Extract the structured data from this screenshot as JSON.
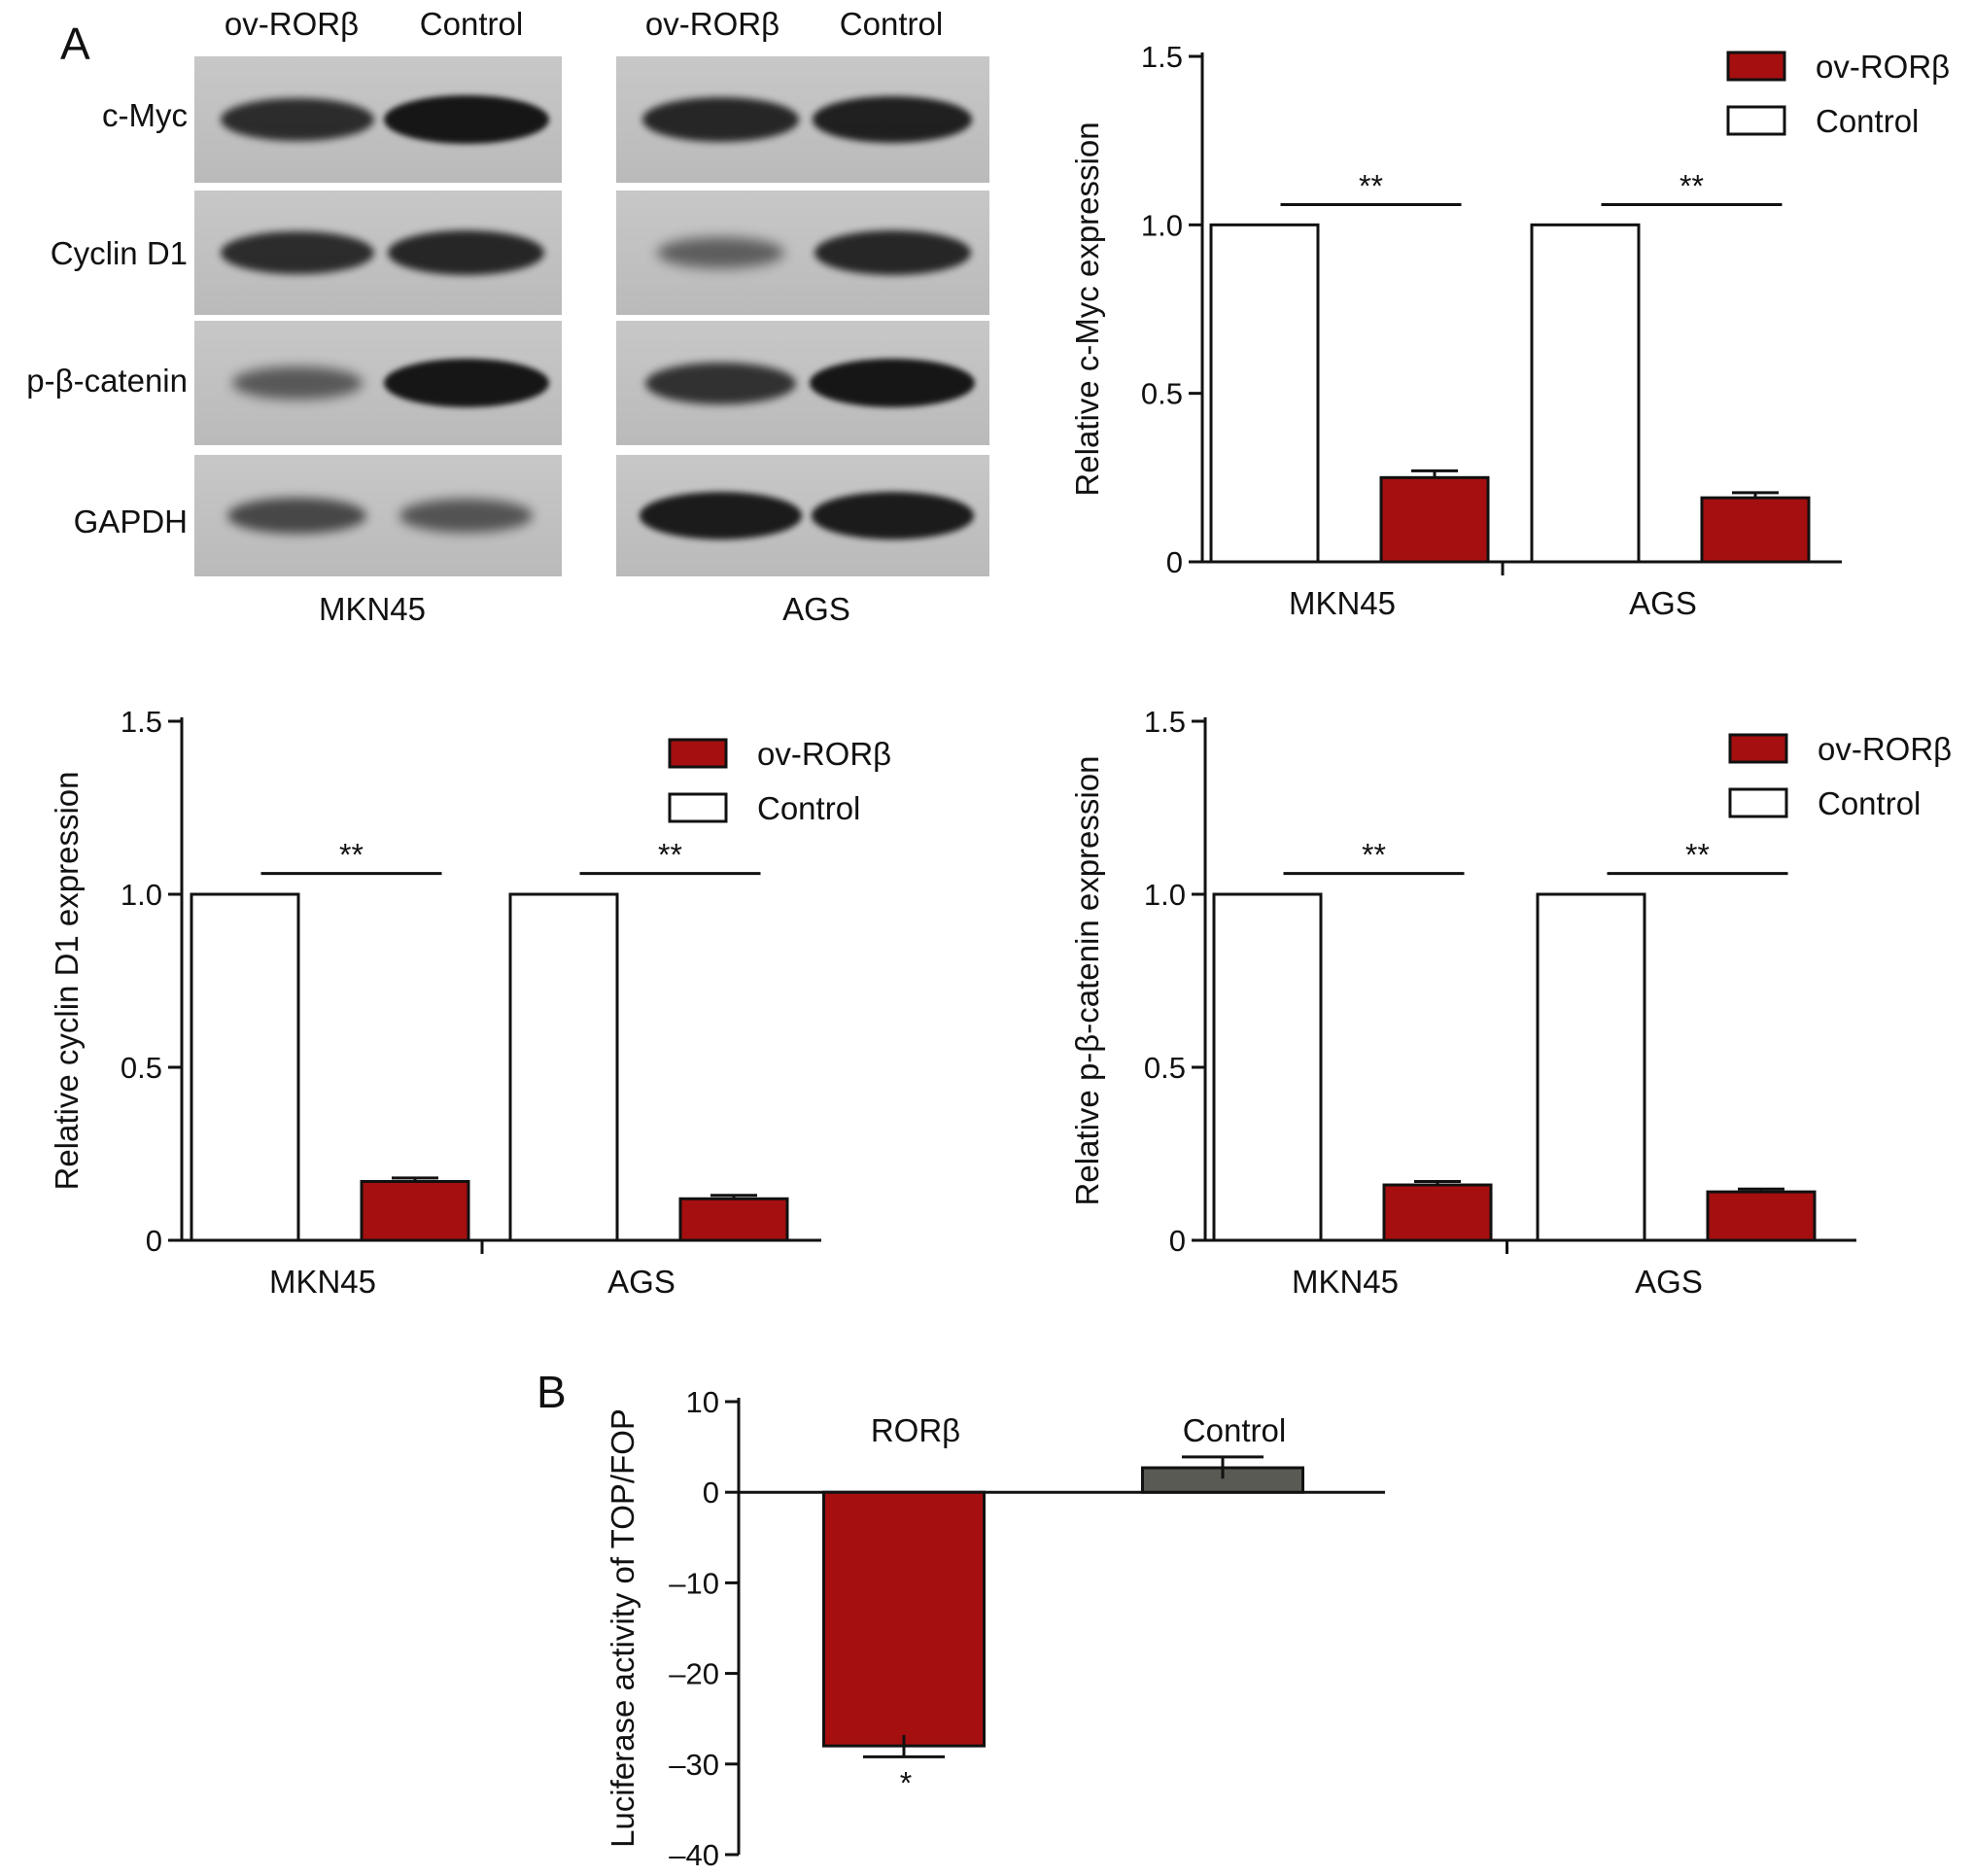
{
  "panel_labels": [
    "A",
    "B"
  ],
  "blot": {
    "lane_labels": [
      "ov-RORβ",
      "Control"
    ],
    "proteins": [
      "c-Myc",
      "Cyclin D1",
      "p-β-catenin",
      "GAPDH"
    ],
    "cell_lines": [
      "MKN45",
      "AGS"
    ],
    "band_intensity": [
      [
        [
          0.8,
          1.0
        ],
        [
          0.85,
          0.9
        ]
      ],
      [
        [
          0.8,
          0.85
        ],
        [
          0.35,
          0.85
        ]
      ],
      [
        [
          0.4,
          1.0
        ],
        [
          0.75,
          1.0
        ]
      ],
      [
        [
          0.55,
          0.45
        ],
        [
          0.95,
          0.95
        ]
      ]
    ]
  },
  "chart_data": [
    {
      "type": "bar",
      "categories": [
        "MKN45",
        "AGS"
      ],
      "series": [
        {
          "name": "ov-RORβ",
          "values": [
            0.25,
            0.19
          ],
          "errors": [
            0.02,
            0.015
          ]
        },
        {
          "name": "Control",
          "values": [
            1.0,
            1.0
          ]
        }
      ],
      "ylabel": "Relative c-Myc expression",
      "ylim": [
        0,
        1.5
      ],
      "yticks": [
        "0",
        "0.5",
        "1.0",
        "1.5"
      ],
      "significance": [
        "**",
        "**"
      ],
      "legend": "top-right",
      "colors": {
        "ov-RORβ": "#a50f0f",
        "Control": "#ffffff"
      }
    },
    {
      "type": "bar",
      "categories": [
        "MKN45",
        "AGS"
      ],
      "series": [
        {
          "name": "ov-RORβ",
          "values": [
            0.17,
            0.12
          ],
          "errors": [
            0.01,
            0.01
          ]
        },
        {
          "name": "Control",
          "values": [
            1.0,
            1.0
          ]
        }
      ],
      "ylabel": "Relative cyclin D1 expression",
      "ylim": [
        0,
        1.5
      ],
      "yticks": [
        "0",
        "0.5",
        "1.0",
        "1.5"
      ],
      "significance": [
        "**",
        "**"
      ],
      "legend": "top-right",
      "colors": {
        "ov-RORβ": "#a50f0f",
        "Control": "#ffffff"
      }
    },
    {
      "type": "bar",
      "categories": [
        "MKN45",
        "AGS"
      ],
      "series": [
        {
          "name": "ov-RORβ",
          "values": [
            0.16,
            0.14
          ],
          "errors": [
            0.01,
            0.008
          ]
        },
        {
          "name": "Control",
          "values": [
            1.0,
            1.0
          ]
        }
      ],
      "ylabel": "Relative p-β-catenin expression",
      "ylim": [
        0,
        1.5
      ],
      "yticks": [
        "0",
        "0.5",
        "1.0",
        "1.5"
      ],
      "significance": [
        "**",
        "**"
      ],
      "legend": "top-right",
      "colors": {
        "ov-RORβ": "#a50f0f",
        "Control": "#ffffff"
      }
    },
    {
      "type": "bar",
      "categories": [
        "RORβ",
        "Control"
      ],
      "values": [
        -28,
        2.7
      ],
      "errors": [
        1.2,
        1.2
      ],
      "ylabel": "Luciferase activity of TOP/FOP",
      "ylim": [
        -40,
        10
      ],
      "yticks": [
        "10",
        "0",
        "–10",
        "–20",
        "–30",
        "–40"
      ],
      "significance": [
        "*",
        ""
      ],
      "colors": {
        "RORβ": "#a50f0f",
        "Control": "#5a5a55"
      }
    }
  ]
}
